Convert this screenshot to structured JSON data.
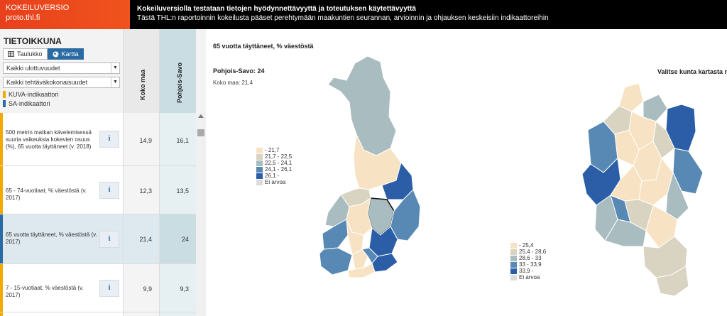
{
  "header": {
    "brand_title": "KOKEILUVERSIO",
    "brand_sub": "proto.thl.fi",
    "title": "Kokeiluversiolla testataan tietojen hyödynnettävyyttä ja toteutuksen käytettävyyttä",
    "subtitle": "Tästä THL:n raportoinnin kokeilusta pääset perehtymään maakuntien seurannan, arvioinnin ja ohjauksen keskeisiin indikaattoreihin"
  },
  "panel": {
    "title": "TIETOIKKUNA",
    "view_table": "Taulukko",
    "view_map": "Kartta",
    "select_dimension": "Kaikki ulottuvuudet",
    "select_task": "Kaikki tehtäväkokonaisuudet",
    "legend_kuva": "KUVA-indikaattori",
    "legend_sa": "SA-indikaattori",
    "col_koko": "Koko maa",
    "col_region": "Pohjois-Savo",
    "info_label": "i"
  },
  "rows": [
    {
      "label": "500 metrin matkan kävelemisessä suuria vaikeuksia kokevien osuus (%), 65 vuotta täyttäneet (v. 2018)",
      "koko": "14,9",
      "region": "16,1"
    },
    {
      "label": "65 - 74-vuotiaat, % väestöstä (v. 2017)",
      "koko": "12,3",
      "region": "13,5"
    },
    {
      "label": "65 vuotta täyttäneet, % väestöstä (v. 2017)",
      "koko": "21,4",
      "region": "24"
    },
    {
      "label": "7 - 15-vuotiaat, % väestöstä (v. 2017)",
      "koko": "9,9",
      "region": "9,3"
    }
  ],
  "map": {
    "title": "65 vuotta täyttäneet, % väestöstä",
    "region_value": "Pohjois-Savo: 24",
    "country_value": "Koko maa: 21,4",
    "hint": "Valitse kunta kartasta nähdäksesi",
    "legend1": [
      "- 21,7",
      "21,7 - 22,5",
      "22,5 - 24,1",
      "24,1 - 26,1",
      "26,1 -",
      "Ei arvoa"
    ],
    "legend2": [
      "- 25,4",
      "25,4 - 28,6",
      "28,6 - 33",
      "33 - 33,9",
      "33,9 -",
      "Ei arvoa"
    ]
  },
  "colors": {
    "brand": "#ee4b1c",
    "accent": "#2a6ba3",
    "kuva": "#f5a800",
    "sa": "#2a6ba3",
    "scale": [
      "#f7e3c3",
      "#d9d3c2",
      "#a9bcc0",
      "#5889b4",
      "#2c5ea8",
      "#dcdcdc"
    ]
  }
}
